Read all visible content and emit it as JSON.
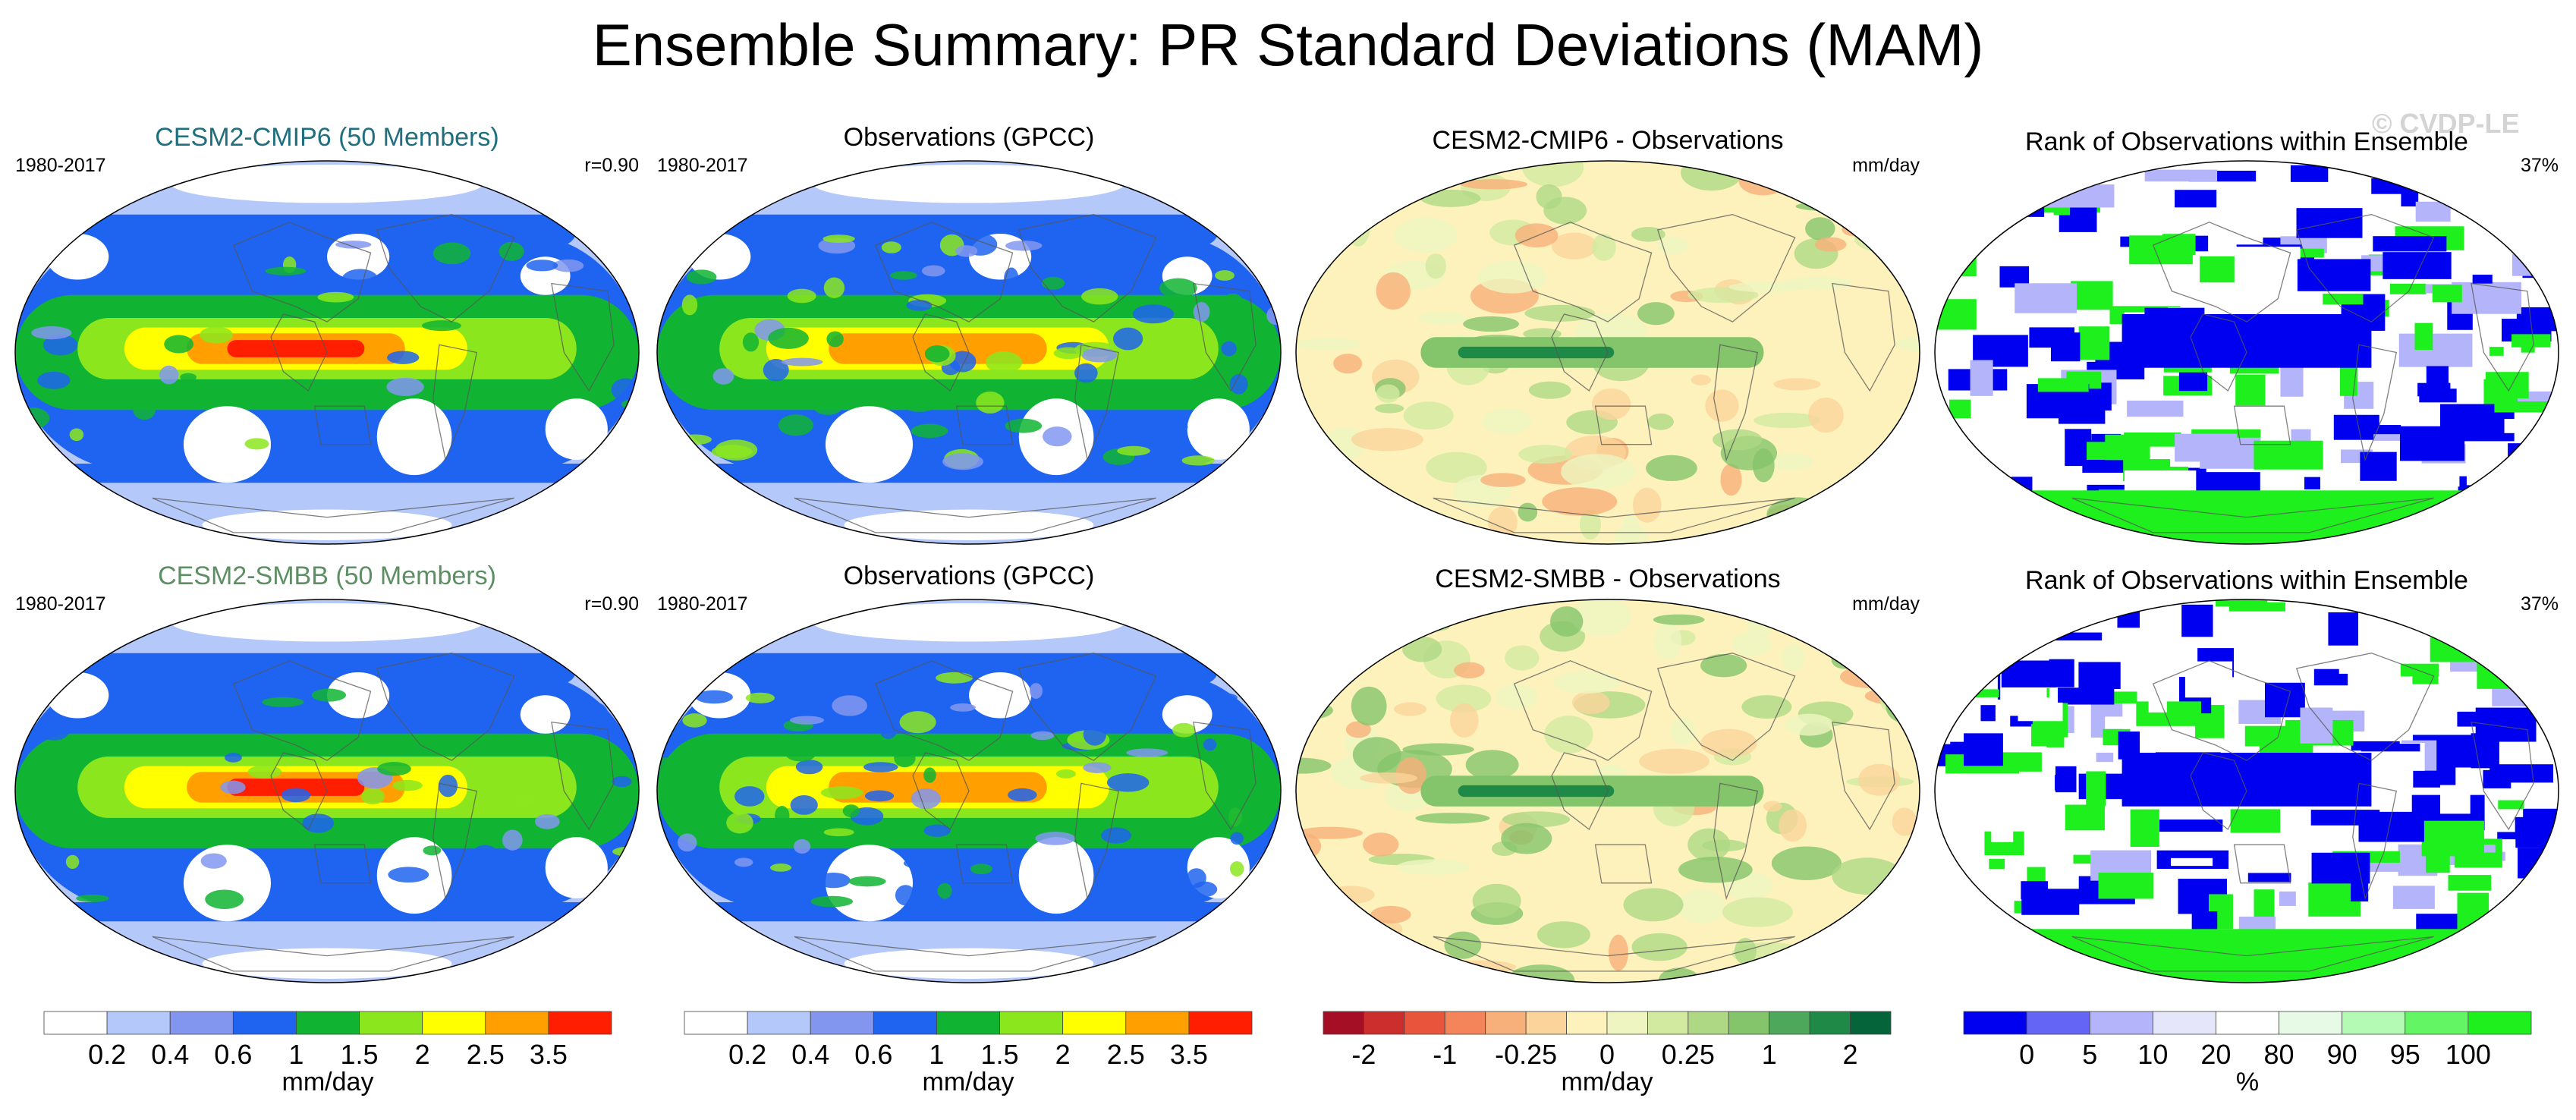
{
  "figure_title": "Ensemble Summary: PR Standard Deviations (MAM)",
  "watermark": "© CVDP-LE",
  "panels": [
    {
      "id": "r1c1",
      "title": "CESM2-CMIP6 (50 Members)",
      "title_color": "#1f6f7f",
      "left_text": "1980-2017",
      "right_text": "r=0.90",
      "scheme": "sd"
    },
    {
      "id": "r1c2",
      "title": "Observations (GPCC)",
      "title_color": "#000000",
      "left_text": "1980-2017",
      "right_text": "",
      "scheme": "sd_obs"
    },
    {
      "id": "r1c3",
      "title": "CESM2-CMIP6 - Observations",
      "title_color": "#000000",
      "left_text": "",
      "right_text": "mm/day",
      "scheme": "diff"
    },
    {
      "id": "r1c4",
      "title": "Rank of Observations within Ensemble",
      "title_color": "#000000",
      "left_text": "",
      "right_text": "37%",
      "scheme": "rank"
    },
    {
      "id": "r2c1",
      "title": "CESM2-SMBB (50 Members)",
      "title_color": "#5e8f64",
      "left_text": "1980-2017",
      "right_text": "r=0.90",
      "scheme": "sd"
    },
    {
      "id": "r2c2",
      "title": "Observations (GPCC)",
      "title_color": "#000000",
      "left_text": "1980-2017",
      "right_text": "",
      "scheme": "sd_obs"
    },
    {
      "id": "r2c3",
      "title": "CESM2-SMBB - Observations",
      "title_color": "#000000",
      "left_text": "",
      "right_text": "mm/day",
      "scheme": "diff"
    },
    {
      "id": "r2c4",
      "title": "Rank of Observations within Ensemble",
      "title_color": "#000000",
      "left_text": "",
      "right_text": "37%",
      "scheme": "rank"
    }
  ],
  "chart_data": [
    {
      "type": "heatmap",
      "title": "CESM2-CMIP6 (50 Members)",
      "subtitle_left": "1980-2017",
      "subtitle_right": "r=0.90",
      "units": "mm/day",
      "levels": [
        0.2,
        0.4,
        0.6,
        1,
        1.5,
        2,
        2.5,
        3.5
      ],
      "pattern_correlation": 0.9
    },
    {
      "type": "heatmap",
      "title": "Observations (GPCC)",
      "subtitle_left": "1980-2017",
      "units": "mm/day",
      "levels": [
        0.2,
        0.4,
        0.6,
        1,
        1.5,
        2,
        2.5,
        3.5
      ]
    },
    {
      "type": "heatmap",
      "title": "CESM2-CMIP6 - Observations",
      "subtitle_right": "mm/day",
      "units": "mm/day",
      "levels": [
        -2,
        -1,
        -0.25,
        0,
        0.25,
        1,
        2
      ]
    },
    {
      "type": "heatmap",
      "title": "Rank of Observations within Ensemble",
      "subtitle_right": "37%",
      "units": "%",
      "levels": [
        0,
        5,
        10,
        20,
        80,
        90,
        95,
        100
      ]
    },
    {
      "type": "heatmap",
      "title": "CESM2-SMBB (50 Members)",
      "subtitle_left": "1980-2017",
      "subtitle_right": "r=0.90",
      "units": "mm/day",
      "levels": [
        0.2,
        0.4,
        0.6,
        1,
        1.5,
        2,
        2.5,
        3.5
      ],
      "pattern_correlation": 0.9
    },
    {
      "type": "heatmap",
      "title": "Observations (GPCC)",
      "subtitle_left": "1980-2017",
      "units": "mm/day",
      "levels": [
        0.2,
        0.4,
        0.6,
        1,
        1.5,
        2,
        2.5,
        3.5
      ]
    },
    {
      "type": "heatmap",
      "title": "CESM2-SMBB - Observations",
      "subtitle_right": "mm/day",
      "units": "mm/day",
      "levels": [
        -2,
        -1,
        -0.25,
        0,
        0.25,
        1,
        2
      ]
    },
    {
      "type": "heatmap",
      "title": "Rank of Observations within Ensemble",
      "subtitle_right": "37%",
      "units": "%",
      "levels": [
        0,
        5,
        10,
        20,
        80,
        90,
        95,
        100
      ]
    }
  ],
  "colorbars": [
    {
      "id": "sd",
      "label": "mm/day",
      "ticks": [
        "0.2",
        "0.4",
        "0.6",
        "1",
        "1.5",
        "2",
        "2.5",
        "3.5"
      ],
      "colors": [
        "#ffffff",
        "#b4c8fa",
        "#8296f0",
        "#1e64f0",
        "#10b432",
        "#8ce61e",
        "#ffff00",
        "#ffa000",
        "#ff1e00"
      ]
    },
    {
      "id": "sd2",
      "label": "mm/day",
      "ticks": [
        "0.2",
        "0.4",
        "0.6",
        "1",
        "1.5",
        "2",
        "2.5",
        "3.5"
      ],
      "colors": [
        "#ffffff",
        "#b4c8fa",
        "#8296f0",
        "#1e64f0",
        "#10b432",
        "#8ce61e",
        "#ffff00",
        "#ffa000",
        "#ff1e00"
      ]
    },
    {
      "id": "diff",
      "label": "mm/day",
      "ticks": [
        "-2",
        "-1",
        "-0.25",
        "0",
        "0.25",
        "1",
        "2"
      ],
      "colors": [
        "#a50f26",
        "#cc2e2e",
        "#e8553c",
        "#f4855a",
        "#f8b07a",
        "#fad49a",
        "#fdf2bc",
        "#eef5c0",
        "#d2eaa0",
        "#aed884",
        "#84c46a",
        "#4ea85c",
        "#1f8a48",
        "#05643a"
      ]
    },
    {
      "id": "rank",
      "label": "%",
      "ticks": [
        "0",
        "5",
        "10",
        "20",
        "80",
        "90",
        "95",
        "100"
      ],
      "colors": [
        "#0000f0",
        "#6464f5",
        "#b4b4fa",
        "#e6e6fa",
        "#ffffff",
        "#e6fae6",
        "#b4fab4",
        "#64f564",
        "#1ef01e"
      ]
    }
  ]
}
